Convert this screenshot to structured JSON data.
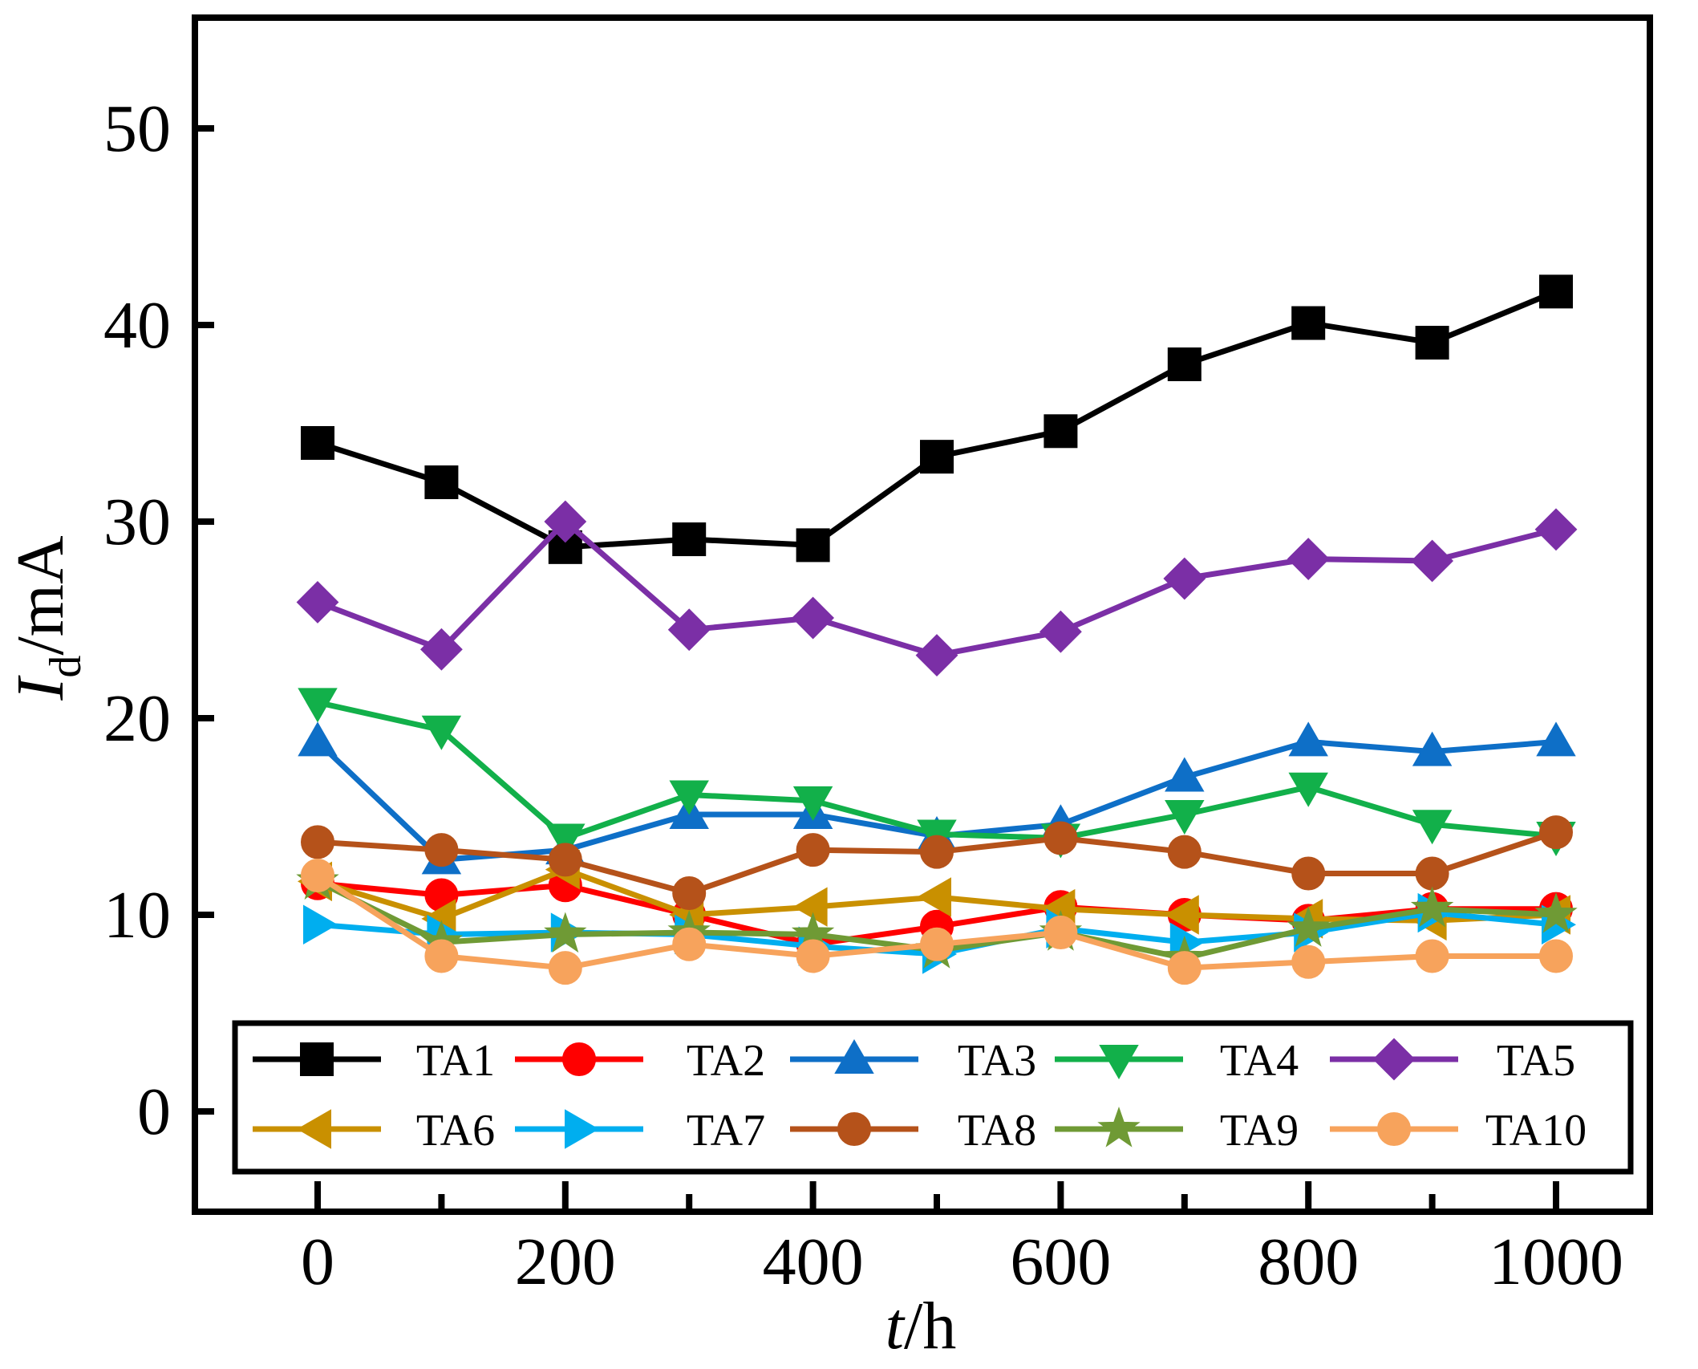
{
  "chart_data": {
    "type": "line",
    "x": [
      0,
      100,
      200,
      300,
      400,
      500,
      600,
      700,
      800,
      900,
      1000
    ],
    "xlabel": {
      "italic": "t",
      "rest": "/h"
    },
    "ylabel": {
      "italic": "I",
      "sub": "d",
      "rest": "/mA"
    },
    "xlim": [
      -100,
      1100
    ],
    "ylim": [
      -5,
      55
    ],
    "xticks": [
      0,
      200,
      400,
      600,
      800,
      1000
    ],
    "xticks_minor": [
      100,
      300,
      500,
      700,
      900
    ],
    "yticks": [
      0,
      10,
      20,
      30,
      40,
      50
    ],
    "grid": false,
    "legend_position": "bottom",
    "series": [
      {
        "name": "TA1",
        "color": "#000000",
        "marker": "square",
        "values": [
          34.0,
          32.0,
          28.7,
          29.1,
          28.8,
          33.3,
          34.6,
          38.0,
          40.1,
          39.1,
          41.7
        ]
      },
      {
        "name": "TA2",
        "color": "#ff0000",
        "marker": "circle",
        "values": [
          11.6,
          11.0,
          11.5,
          10.0,
          8.5,
          9.4,
          10.4,
          10.0,
          9.7,
          10.3,
          10.3
        ]
      },
      {
        "name": "TA3",
        "color": "#0e6fc7",
        "marker": "triangle-up",
        "values": [
          18.8,
          12.8,
          13.3,
          15.1,
          15.1,
          14.0,
          14.6,
          17.0,
          18.8,
          18.3,
          18.8
        ]
      },
      {
        "name": "TA4",
        "color": "#12b04a",
        "marker": "triangle-down",
        "values": [
          20.8,
          19.4,
          13.9,
          16.1,
          15.8,
          14.1,
          13.9,
          15.1,
          16.5,
          14.6,
          14.0
        ]
      },
      {
        "name": "TA5",
        "color": "#7b2fa6",
        "marker": "diamond",
        "values": [
          25.9,
          23.5,
          30.0,
          24.5,
          25.1,
          23.2,
          24.4,
          27.1,
          28.1,
          28.0,
          29.6
        ]
      },
      {
        "name": "TA6",
        "color": "#c99000",
        "marker": "triangle-left",
        "values": [
          11.7,
          9.8,
          12.3,
          10.0,
          10.4,
          10.9,
          10.3,
          10.0,
          9.8,
          9.7,
          10.0
        ]
      },
      {
        "name": "TA7",
        "color": "#00aeef",
        "marker": "triangle-right",
        "values": [
          9.5,
          9.0,
          9.1,
          9.0,
          8.4,
          8.0,
          9.3,
          8.6,
          9.1,
          10.1,
          9.5
        ]
      },
      {
        "name": "TA8",
        "color": "#b5521a",
        "marker": "circle",
        "values": [
          13.7,
          13.3,
          12.8,
          11.1,
          13.3,
          13.2,
          13.9,
          13.2,
          12.1,
          12.1,
          14.2
        ]
      },
      {
        "name": "TA9",
        "color": "#6f9a35",
        "marker": "star",
        "values": [
          11.7,
          8.6,
          9.0,
          9.1,
          9.0,
          8.2,
          9.1,
          7.8,
          9.3,
          10.3,
          10.0
        ]
      },
      {
        "name": "TA10",
        "color": "#f7a35c",
        "marker": "circle",
        "values": [
          12.0,
          7.9,
          7.3,
          8.5,
          7.9,
          8.5,
          9.1,
          7.3,
          7.6,
          7.9,
          7.9
        ]
      }
    ]
  }
}
